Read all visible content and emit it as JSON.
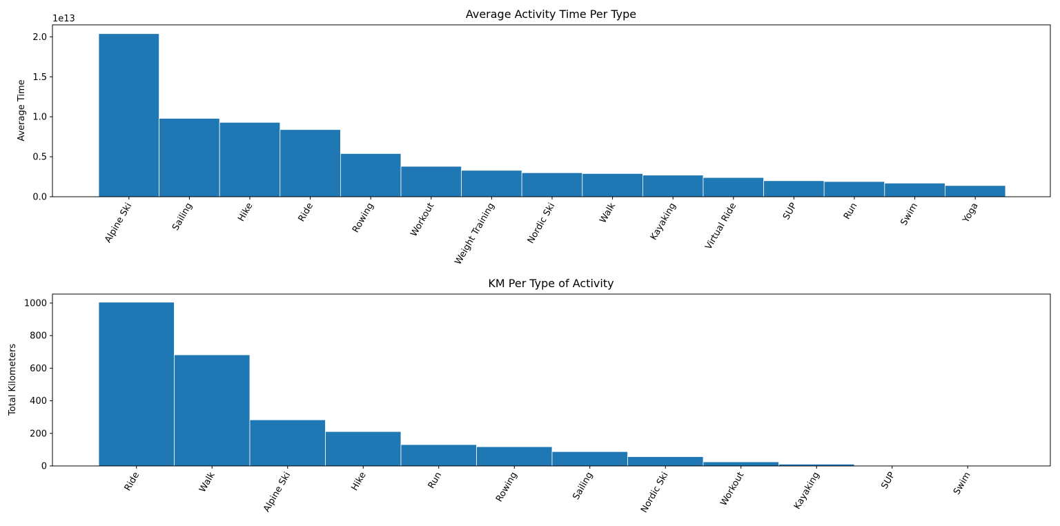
{
  "colors": {
    "bar": "#1f77b4",
    "bar_edge": "#ffffff",
    "axes": "#000000"
  },
  "chart_data": [
    {
      "type": "bar",
      "title": "Average Activity Time Per Type",
      "xlabel": "",
      "ylabel": "Average Time",
      "y_offset_label": "1e13",
      "categories": [
        "Alpine Ski",
        "Sailing",
        "Hike",
        "Ride",
        "Rowing",
        "Workout",
        "Weight Training",
        "Nordic Ski",
        "Walk",
        "Kayaking",
        "Virtual Ride",
        "SUP",
        "Run",
        "Swim",
        "Yoga"
      ],
      "values": [
        20400000000000.0,
        9800000000000.0,
        9300000000000.0,
        8400000000000.0,
        5400000000000.0,
        3800000000000.0,
        3300000000000.0,
        3000000000000.0,
        2900000000000.0,
        2700000000000.0,
        2400000000000.0,
        2000000000000.0,
        1900000000000.0,
        1700000000000.0,
        1400000000000.0
      ],
      "ylim": [
        0,
        21500000000000.0
      ],
      "yticks": [
        0,
        5000000000000.0,
        10000000000000.0,
        15000000000000.0,
        20000000000000.0
      ],
      "ytick_labels": [
        "0.0",
        "0.5",
        "1.0",
        "1.5",
        "2.0"
      ],
      "xtick_rotation": -60,
      "grid": false,
      "legend": "none"
    },
    {
      "type": "bar",
      "title": "KM Per Type of Activity",
      "xlabel": "",
      "ylabel": "Total Kilometers",
      "categories": [
        "Ride",
        "Walk",
        "Alpine Ski",
        "Hike",
        "Run",
        "Rowing",
        "Sailing",
        "Nordic Ski",
        "Workout",
        "Kayaking",
        "SUP",
        "Swim"
      ],
      "values": [
        1005,
        682,
        283,
        211,
        131,
        118,
        88,
        57,
        25,
        11,
        1,
        0.5
      ],
      "ylim": [
        0,
        1055
      ],
      "yticks": [
        0,
        200,
        400,
        600,
        800,
        1000
      ],
      "ytick_labels": [
        "0",
        "200",
        "400",
        "600",
        "800",
        "1000"
      ],
      "xtick_rotation": -60,
      "grid": false,
      "legend": "none"
    }
  ]
}
